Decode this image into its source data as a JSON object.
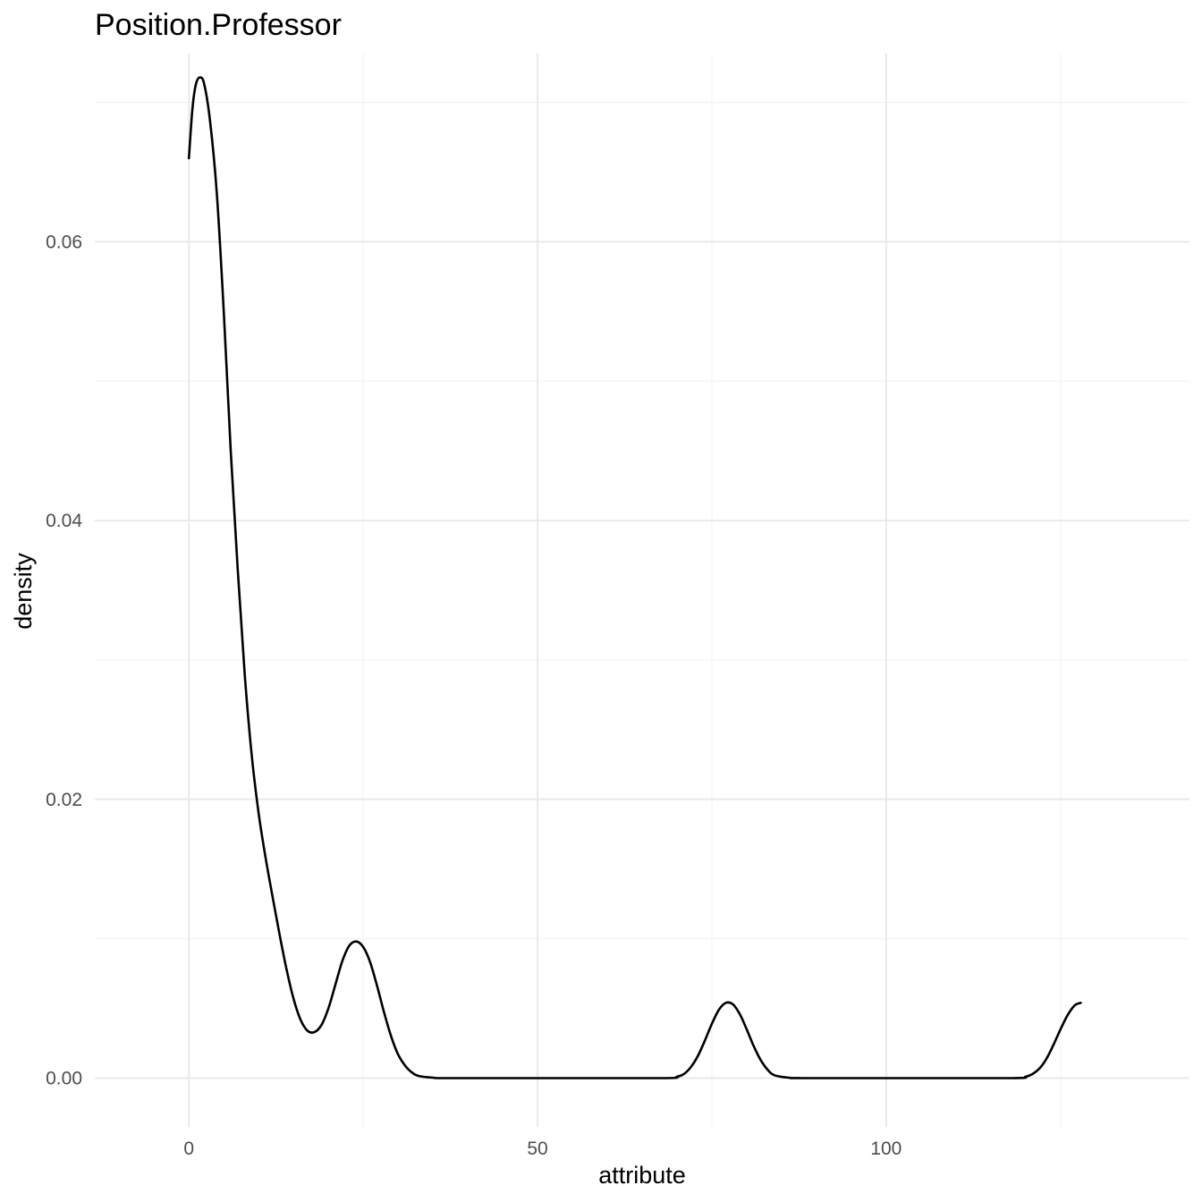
{
  "chart_data": {
    "type": "line",
    "title": "Position.Professor",
    "xlabel": "attribute",
    "ylabel": "density",
    "xlim": [
      -13.5,
      143.5
    ],
    "ylim": [
      -0.0035,
      0.0735
    ],
    "x_ticks": [
      {
        "value": 0,
        "label": "0"
      },
      {
        "value": 50,
        "label": "50"
      },
      {
        "value": 100,
        "label": "100"
      }
    ],
    "x_minor_ticks": [
      25,
      75,
      125
    ],
    "y_ticks": [
      {
        "value": 0.0,
        "label": "0.00"
      },
      {
        "value": 0.02,
        "label": "0.02"
      },
      {
        "value": 0.04,
        "label": "0.04"
      },
      {
        "value": 0.06,
        "label": "0.06"
      }
    ],
    "y_minor_ticks": [
      0.01,
      0.03,
      0.05,
      0.07
    ],
    "grid": true,
    "series": [
      {
        "color": "#000000",
        "points": [
          [
            0,
            0.066
          ],
          [
            0.5,
            0.0695
          ],
          [
            1,
            0.0713
          ],
          [
            1.6,
            0.0718
          ],
          [
            2.2,
            0.0713
          ],
          [
            3,
            0.0688
          ],
          [
            4,
            0.0635
          ],
          [
            5,
            0.055
          ],
          [
            6,
            0.045
          ],
          [
            7,
            0.0365
          ],
          [
            8,
            0.029
          ],
          [
            9,
            0.0232
          ],
          [
            10,
            0.019
          ],
          [
            11,
            0.0158
          ],
          [
            12,
            0.013
          ],
          [
            13,
            0.0103
          ],
          [
            14,
            0.0078
          ],
          [
            15,
            0.0057
          ],
          [
            16,
            0.0042
          ],
          [
            17,
            0.0034
          ],
          [
            18,
            0.0033
          ],
          [
            19,
            0.0038
          ],
          [
            20,
            0.005
          ],
          [
            21,
            0.0067
          ],
          [
            22,
            0.0084
          ],
          [
            23,
            0.0095
          ],
          [
            24,
            0.0098
          ],
          [
            25,
            0.0094
          ],
          [
            26,
            0.0083
          ],
          [
            27,
            0.0066
          ],
          [
            28,
            0.0047
          ],
          [
            29,
            0.003
          ],
          [
            30,
            0.0017
          ],
          [
            31,
            0.0009
          ],
          [
            32,
            0.0004
          ],
          [
            33,
            0.00015
          ],
          [
            35,
            3e-05
          ],
          [
            37,
            0.0
          ],
          [
            50,
            0.0
          ],
          [
            68,
            0.0
          ],
          [
            70,
            0.0001
          ],
          [
            71,
            0.0003
          ],
          [
            72,
            0.0008
          ],
          [
            73,
            0.0016
          ],
          [
            74,
            0.0027
          ],
          [
            75,
            0.0039
          ],
          [
            76,
            0.0049
          ],
          [
            77,
            0.0054
          ],
          [
            78,
            0.0053
          ],
          [
            79,
            0.0046
          ],
          [
            80,
            0.0035
          ],
          [
            81,
            0.0023
          ],
          [
            82,
            0.0013
          ],
          [
            83,
            0.0006
          ],
          [
            84,
            0.0002
          ],
          [
            86,
            3e-05
          ],
          [
            88,
            0.0
          ],
          [
            100,
            0.0
          ],
          [
            118,
            0.0
          ],
          [
            120,
            0.0001
          ],
          [
            121,
            0.0003
          ],
          [
            122,
            0.0007
          ],
          [
            123,
            0.0014
          ],
          [
            124,
            0.0024
          ],
          [
            125,
            0.0035
          ],
          [
            126,
            0.0045
          ],
          [
            127,
            0.0052
          ],
          [
            127.9,
            0.0054
          ]
        ]
      }
    ]
  }
}
